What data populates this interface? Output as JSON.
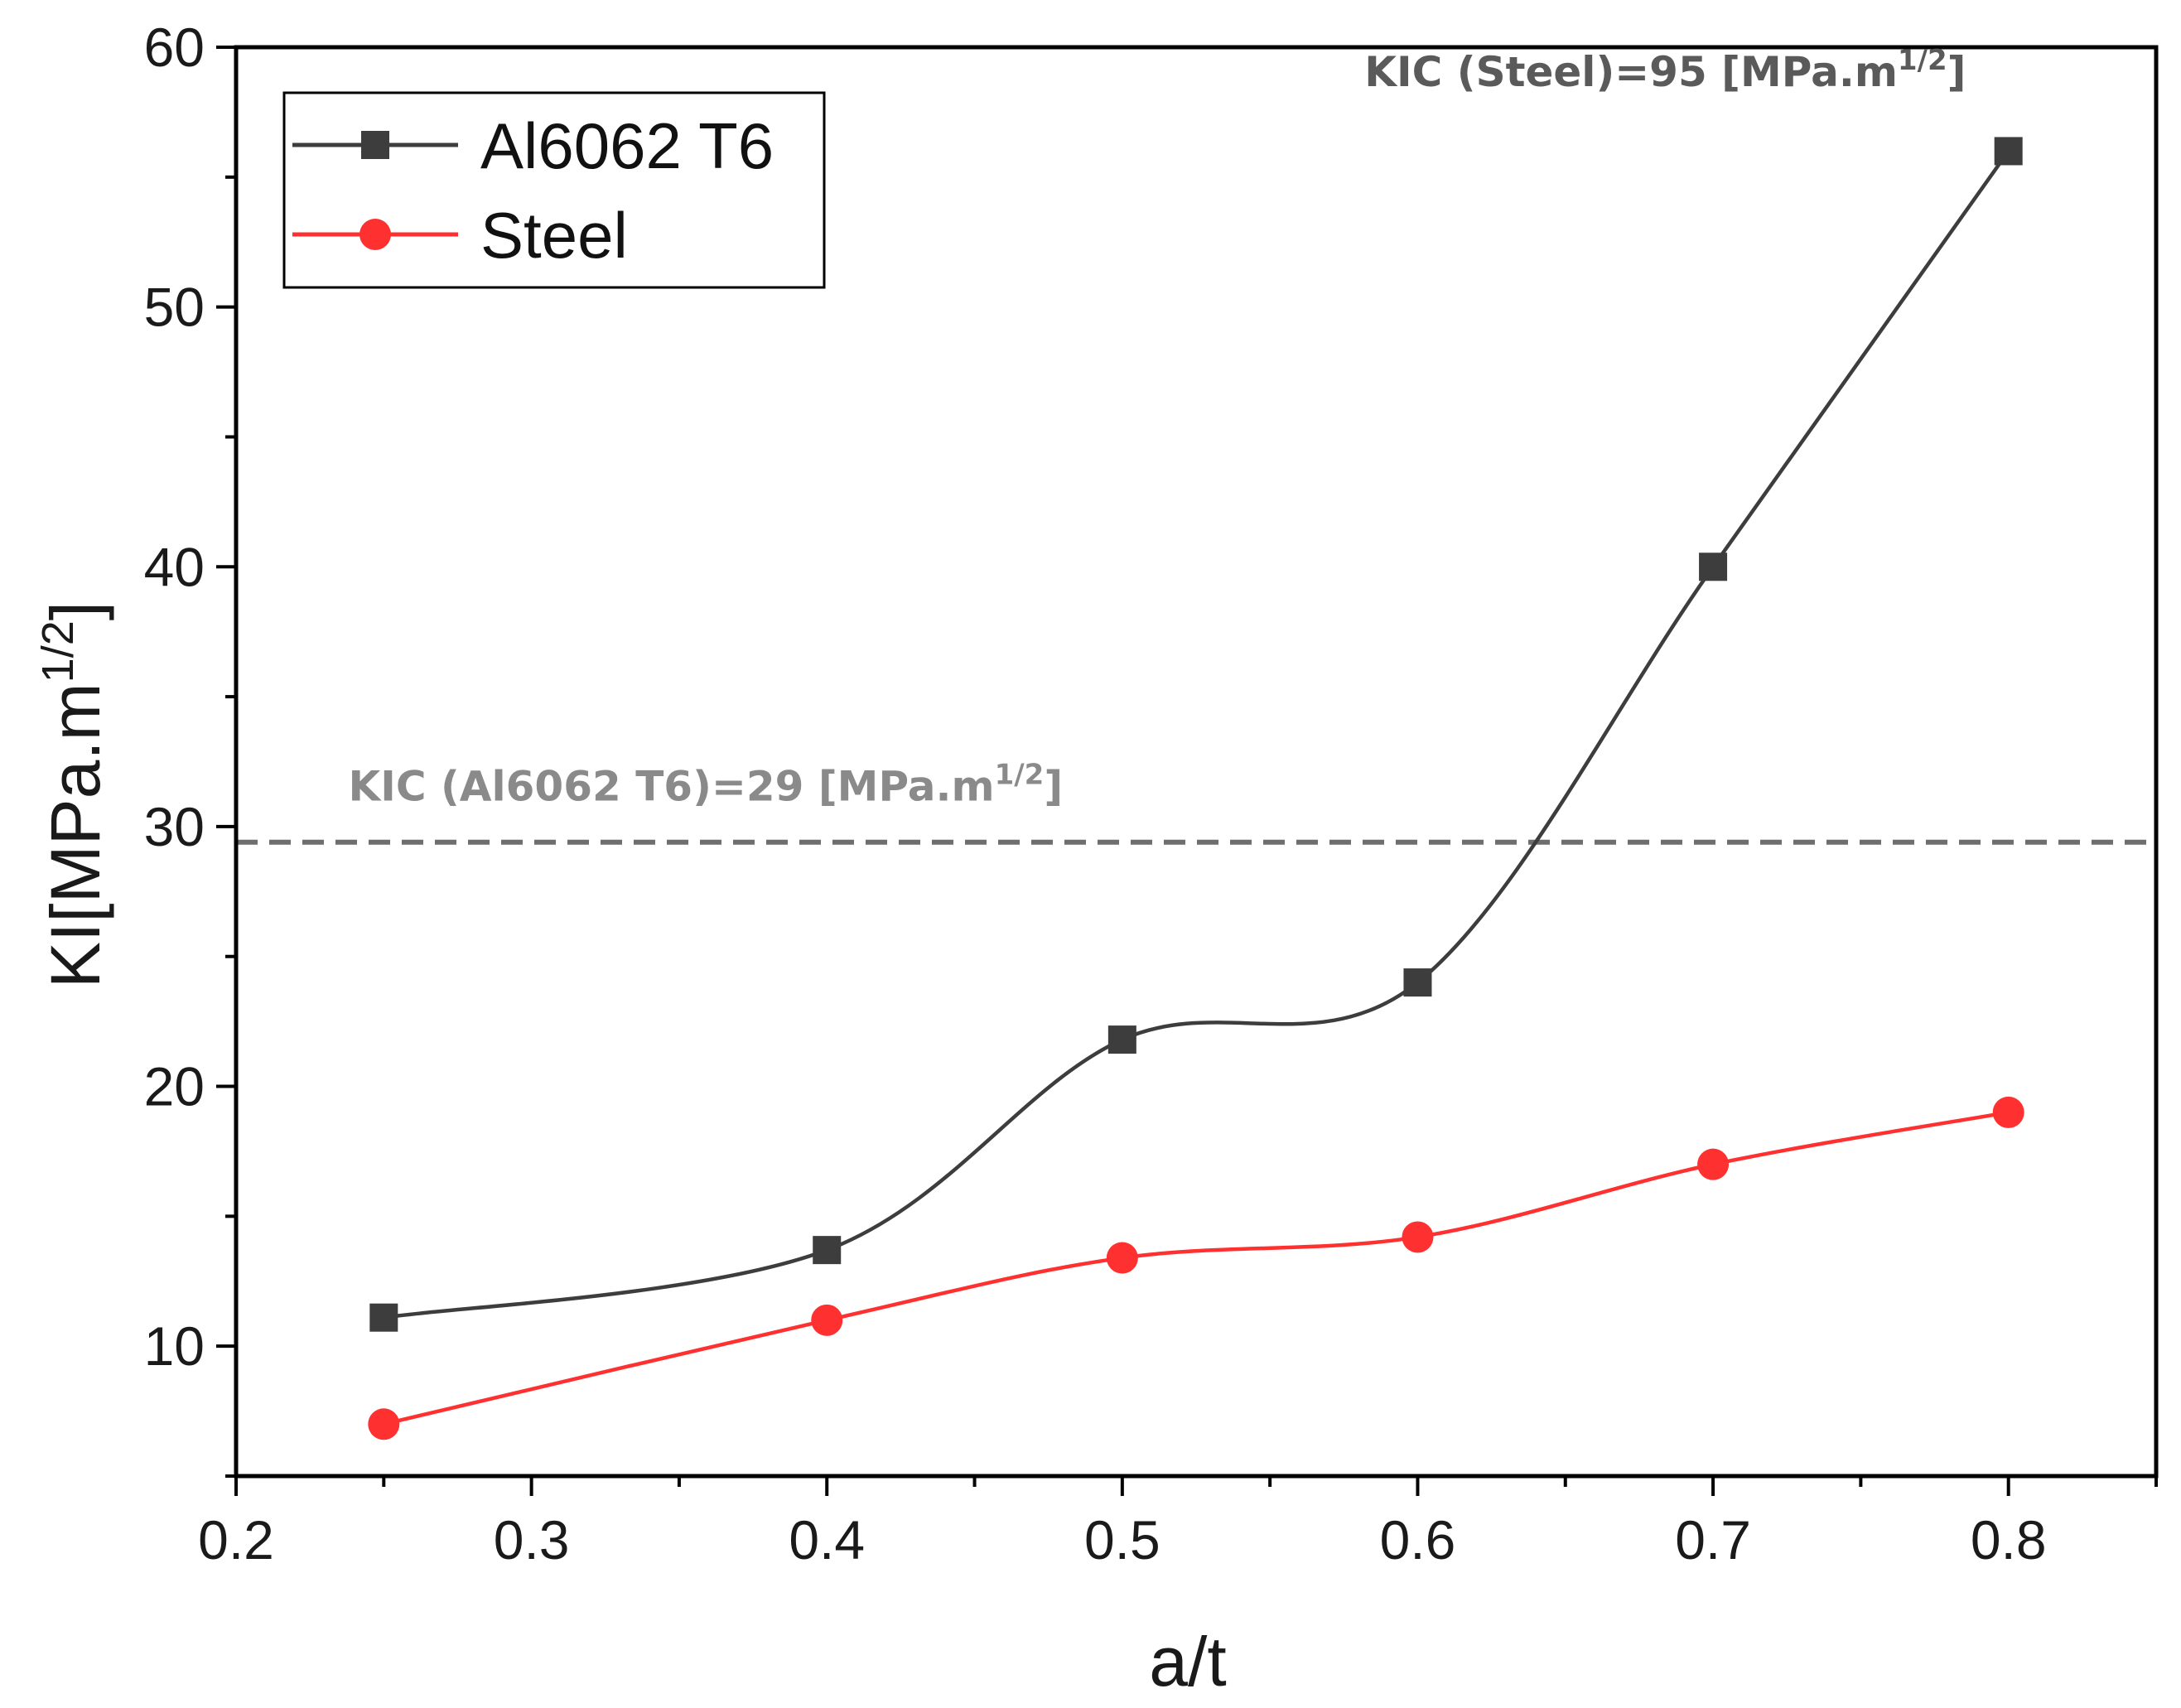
{
  "chart_data": {
    "type": "line",
    "title": "",
    "xlabel": "a/t",
    "ylabel_main": "KI[MPa.m",
    "ylabel_sup": "1/2",
    "ylabel_close": "]",
    "xlim": [
      0.2,
      0.85
    ],
    "ylim": [
      5,
      60
    ],
    "x_ticks": [
      0.2,
      0.3,
      0.4,
      0.5,
      0.6,
      0.7,
      0.8
    ],
    "x_tick_labels": [
      "0.2",
      "0.3",
      "0.4",
      "0.5",
      "0.6",
      "0.7",
      "0.8"
    ],
    "x_minor_ticks": [
      0.25,
      0.35,
      0.45,
      0.55,
      0.65,
      0.75,
      0.85
    ],
    "y_ticks": [
      10,
      20,
      30,
      40,
      50,
      60
    ],
    "y_tick_labels": [
      "10",
      "20",
      "30",
      "40",
      "50",
      "60"
    ],
    "y_minor_ticks": [
      5,
      15,
      25,
      35,
      45,
      55
    ],
    "legend_position": "top-left",
    "series": [
      {
        "name": "Al6062 T6",
        "color": "#3d3d3d",
        "marker": "square",
        "x": [
          0.25,
          0.4,
          0.5,
          0.6,
          0.7,
          0.8
        ],
        "values": [
          11.1,
          13.7,
          21.8,
          24.0,
          40.0,
          56.0
        ]
      },
      {
        "name": "Steel",
        "color": "#ff3030",
        "marker": "circle",
        "x": [
          0.25,
          0.4,
          0.5,
          0.6,
          0.7,
          0.8
        ],
        "values": [
          7.0,
          11.0,
          13.4,
          14.2,
          17.0,
          19.0
        ]
      }
    ],
    "reference_lines": [
      {
        "orientation": "horizontal",
        "value": 29.4,
        "style": "dashed",
        "color": "#6e6e6e"
      }
    ],
    "annotations": [
      {
        "id": "al",
        "main": "KIC (Al6062 T6)=29 [MPa.m",
        "sup": "1/2",
        "close": "]",
        "color": "#8a8a8a",
        "anchor_x": 0.238,
        "anchor_y": 31.0
      },
      {
        "id": "steel",
        "main": "KIC (Steel)=95 [MPa.m",
        "sup": "1/2",
        "close": "]",
        "color": "#5a5a5a",
        "anchor_x": 0.582,
        "anchor_y": 58.5
      }
    ]
  }
}
